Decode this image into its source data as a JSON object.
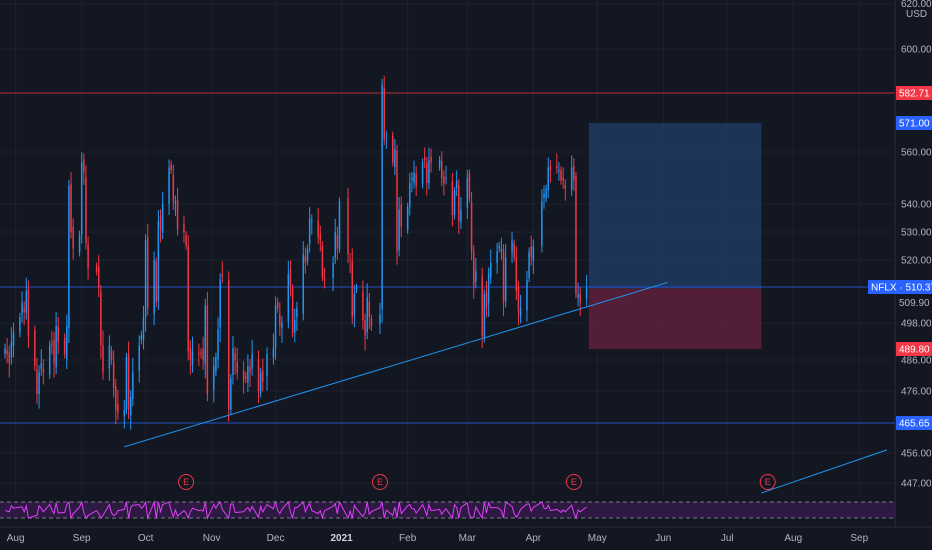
{
  "chart_data": {
    "type": "candlestick",
    "symbol": "NFLX",
    "currency": "USD",
    "y_range": [
      440,
      620
    ],
    "x_range": [
      "2020-07-27",
      "2021-09-14"
    ],
    "price_ticks": [
      620,
      600,
      560,
      540,
      530,
      520,
      498,
      486,
      476,
      456,
      447
    ],
    "price_tick_labels": [
      "620.00",
      "600.00",
      "560.00",
      "540.00",
      "530.00",
      "520.00",
      "498.00",
      "486.00",
      "476.00",
      "456.00",
      "447.00"
    ],
    "time_ticks": [
      {
        "label": "Aug",
        "date": "2020-08-01",
        "bold": false
      },
      {
        "label": "Sep",
        "date": "2020-09-01",
        "bold": false
      },
      {
        "label": "Oct",
        "date": "2020-10-01",
        "bold": false
      },
      {
        "label": "Nov",
        "date": "2020-11-01",
        "bold": false
      },
      {
        "label": "Dec",
        "date": "2020-12-01",
        "bold": false
      },
      {
        "label": "2021",
        "date": "2021-01-01",
        "bold": true
      },
      {
        "label": "Feb",
        "date": "2021-02-01",
        "bold": false
      },
      {
        "label": "Mar",
        "date": "2021-03-01",
        "bold": false
      },
      {
        "label": "Apr",
        "date": "2021-04-01",
        "bold": false
      },
      {
        "label": "May",
        "date": "2021-05-01",
        "bold": false
      },
      {
        "label": "Jun",
        "date": "2021-06-01",
        "bold": false
      },
      {
        "label": "Jul",
        "date": "2021-07-01",
        "bold": false
      },
      {
        "label": "Aug",
        "date": "2021-08-01",
        "bold": false
      },
      {
        "label": "Sep",
        "date": "2021-09-01",
        "bold": false
      }
    ],
    "closes": [
      [
        "2020-07-27",
        490
      ],
      [
        "2020-07-28",
        488
      ],
      [
        "2020-07-29",
        485
      ],
      [
        "2020-07-30",
        492
      ],
      [
        "2020-07-31",
        495
      ],
      [
        "2020-08-03",
        500
      ],
      [
        "2020-08-04",
        505
      ],
      [
        "2020-08-05",
        502
      ],
      [
        "2020-08-06",
        509
      ],
      [
        "2020-08-07",
        494
      ],
      [
        "2020-08-10",
        484
      ],
      [
        "2020-08-11",
        475
      ],
      [
        "2020-08-12",
        482
      ],
      [
        "2020-08-13",
        485
      ],
      [
        "2020-08-14",
        482
      ],
      [
        "2020-08-17",
        491
      ],
      [
        "2020-08-18",
        491
      ],
      [
        "2020-08-19",
        485
      ],
      [
        "2020-08-20",
        497
      ],
      [
        "2020-08-21",
        492
      ],
      [
        "2020-08-24",
        488
      ],
      [
        "2020-08-25",
        497
      ],
      [
        "2020-08-26",
        547
      ],
      [
        "2020-08-27",
        530
      ],
      [
        "2020-08-28",
        524
      ],
      [
        "2020-08-31",
        529
      ],
      [
        "2020-09-01",
        556
      ],
      [
        "2020-09-02",
        552
      ],
      [
        "2020-09-03",
        526
      ],
      [
        "2020-09-04",
        517
      ],
      [
        "2020-09-08",
        516
      ],
      [
        "2020-09-09",
        510
      ],
      [
        "2020-09-10",
        491
      ],
      [
        "2020-09-11",
        482
      ],
      [
        "2020-09-14",
        491
      ],
      [
        "2020-09-15",
        486
      ],
      [
        "2020-09-16",
        477
      ],
      [
        "2020-09-17",
        470
      ],
      [
        "2020-09-18",
        469
      ],
      [
        "2020-09-21",
        470
      ],
      [
        "2020-09-22",
        487
      ],
      [
        "2020-09-23",
        470
      ],
      [
        "2020-09-24",
        474
      ],
      [
        "2020-09-25",
        482
      ],
      [
        "2020-09-28",
        491
      ],
      [
        "2020-09-29",
        494
      ],
      [
        "2020-09-30",
        500
      ],
      [
        "2020-10-01",
        527
      ],
      [
        "2020-10-02",
        503
      ],
      [
        "2020-10-05",
        520
      ],
      [
        "2020-10-06",
        505
      ],
      [
        "2020-10-07",
        534
      ],
      [
        "2020-10-08",
        531
      ],
      [
        "2020-10-09",
        540
      ],
      [
        "2020-10-12",
        554
      ],
      [
        "2020-10-13",
        553
      ],
      [
        "2020-10-14",
        541
      ],
      [
        "2020-10-15",
        541
      ],
      [
        "2020-10-16",
        531
      ],
      [
        "2020-10-19",
        530
      ],
      [
        "2020-10-20",
        525
      ],
      [
        "2020-10-21",
        489
      ],
      [
        "2020-10-22",
        486
      ],
      [
        "2020-10-23",
        489
      ],
      [
        "2020-10-26",
        488
      ],
      [
        "2020-10-27",
        488
      ],
      [
        "2020-10-28",
        486
      ],
      [
        "2020-10-29",
        504
      ],
      [
        "2020-10-30",
        475
      ],
      [
        "2020-11-02",
        484
      ],
      [
        "2020-11-03",
        487
      ],
      [
        "2020-11-04",
        496
      ],
      [
        "2020-11-05",
        513
      ],
      [
        "2020-11-06",
        514
      ],
      [
        "2020-11-09",
        470
      ],
      [
        "2020-11-10",
        480
      ],
      [
        "2020-11-11",
        490
      ],
      [
        "2020-11-12",
        486
      ],
      [
        "2020-11-13",
        482
      ],
      [
        "2020-11-16",
        479
      ],
      [
        "2020-11-17",
        480
      ],
      [
        "2020-11-18",
        484
      ],
      [
        "2020-11-19",
        482
      ],
      [
        "2020-11-20",
        488
      ],
      [
        "2020-11-23",
        476
      ],
      [
        "2020-11-24",
        482
      ],
      [
        "2020-11-25",
        479
      ],
      [
        "2020-11-27",
        488
      ],
      [
        "2020-11-30",
        490
      ],
      [
        "2020-12-01",
        504
      ],
      [
        "2020-12-02",
        503
      ],
      [
        "2020-12-03",
        497
      ],
      [
        "2020-12-04",
        498
      ],
      [
        "2020-12-07",
        515
      ],
      [
        "2020-12-08",
        511
      ],
      [
        "2020-12-09",
        495
      ],
      [
        "2020-12-10",
        499
      ],
      [
        "2020-12-11",
        503
      ],
      [
        "2020-12-14",
        522
      ],
      [
        "2020-12-15",
        519
      ],
      [
        "2020-12-16",
        524
      ],
      [
        "2020-12-17",
        535
      ],
      [
        "2020-12-18",
        534
      ],
      [
        "2020-12-21",
        528
      ],
      [
        "2020-12-22",
        527
      ],
      [
        "2020-12-23",
        514
      ],
      [
        "2020-12-24",
        513
      ],
      [
        "2020-12-28",
        519
      ],
      [
        "2020-12-29",
        530
      ],
      [
        "2020-12-30",
        524
      ],
      [
        "2020-12-31",
        541
      ],
      [
        "2021-01-04",
        522
      ],
      [
        "2021-01-05",
        520
      ],
      [
        "2021-01-06",
        500
      ],
      [
        "2021-01-07",
        508
      ],
      [
        "2021-01-08",
        510
      ],
      [
        "2021-01-11",
        499
      ],
      [
        "2021-01-12",
        494
      ],
      [
        "2021-01-13",
        507
      ],
      [
        "2021-01-14",
        500
      ],
      [
        "2021-01-15",
        497
      ],
      [
        "2021-01-19",
        501
      ],
      [
        "2021-01-20",
        586
      ],
      [
        "2021-01-21",
        565
      ],
      [
        "2021-01-22",
        565
      ],
      [
        "2021-01-25",
        556
      ],
      [
        "2021-01-26",
        561
      ],
      [
        "2021-01-27",
        523
      ],
      [
        "2021-01-28",
        538
      ],
      [
        "2021-01-29",
        532
      ],
      [
        "2021-02-01",
        539
      ],
      [
        "2021-02-02",
        548
      ],
      [
        "2021-02-03",
        550
      ],
      [
        "2021-02-04",
        552
      ],
      [
        "2021-02-05",
        547
      ],
      [
        "2021-02-08",
        556
      ],
      [
        "2021-02-09",
        557
      ],
      [
        "2021-02-10",
        548
      ],
      [
        "2021-02-11",
        557
      ],
      [
        "2021-02-12",
        556
      ],
      [
        "2021-02-16",
        557
      ],
      [
        "2021-02-17",
        550
      ],
      [
        "2021-02-18",
        548
      ],
      [
        "2021-02-19",
        550
      ],
      [
        "2021-02-22",
        536
      ],
      [
        "2021-02-23",
        545
      ],
      [
        "2021-02-24",
        549
      ],
      [
        "2021-02-25",
        534
      ],
      [
        "2021-02-26",
        538
      ],
      [
        "2021-03-01",
        550
      ],
      [
        "2021-03-02",
        542
      ],
      [
        "2021-03-03",
        523
      ],
      [
        "2021-03-04",
        511
      ],
      [
        "2021-03-05",
        516
      ],
      [
        "2021-03-08",
        494
      ],
      [
        "2021-03-09",
        508
      ],
      [
        "2021-03-10",
        503
      ],
      [
        "2021-03-11",
        515
      ],
      [
        "2021-03-12",
        519
      ],
      [
        "2021-03-15",
        523
      ],
      [
        "2021-03-16",
        525
      ],
      [
        "2021-03-17",
        524
      ],
      [
        "2021-03-18",
        505
      ],
      [
        "2021-03-19",
        521
      ],
      [
        "2021-03-22",
        527
      ],
      [
        "2021-03-23",
        521
      ],
      [
        "2021-03-24",
        509
      ],
      [
        "2021-03-25",
        502
      ],
      [
        "2021-03-26",
        503
      ],
      [
        "2021-03-29",
        513
      ],
      [
        "2021-03-30",
        523
      ],
      [
        "2021-03-31",
        521
      ],
      [
        "2021-04-01",
        525
      ],
      [
        "2021-04-05",
        541
      ],
      [
        "2021-04-06",
        544
      ],
      [
        "2021-04-07",
        546
      ],
      [
        "2021-04-08",
        554
      ],
      [
        "2021-04-09",
        553
      ],
      [
        "2021-04-12",
        554
      ],
      [
        "2021-04-13",
        553
      ],
      [
        "2021-04-14",
        549
      ],
      [
        "2021-04-15",
        549
      ],
      [
        "2021-04-16",
        546
      ],
      [
        "2021-04-19",
        554
      ],
      [
        "2021-04-20",
        549
      ],
      [
        "2021-04-21",
        508
      ],
      [
        "2021-04-22",
        508
      ],
      [
        "2021-04-23",
        505
      ],
      [
        "2021-04-26",
        510
      ]
    ],
    "horizontal_levels": [
      {
        "price": 582.71,
        "label": "582.71",
        "color": "#f23645"
      },
      {
        "price": 510.37,
        "label": "510.37",
        "color": "#2962ff"
      },
      {
        "price": 465.65,
        "label": "465.65",
        "color": "#2962ff"
      }
    ],
    "trendline": {
      "start": [
        "2020-09-21",
        458
      ],
      "end": [
        "2021-06-03",
        512
      ],
      "color": "#2196f3"
    },
    "trendline_2": {
      "start": [
        "2021-07-17",
        444
      ],
      "end": [
        "2021-09-14",
        457
      ],
      "color": "#2196f3"
    },
    "long_position": {
      "start": "2021-04-27",
      "end": "2021-07-17",
      "entry": 509.9,
      "target": 571.0,
      "stop": 489.8,
      "entry_label": "509.90",
      "target_label": "571.00",
      "stop_label": "489.80",
      "profit_color": "#1e3a5f",
      "loss_color": "#5b1f3b"
    },
    "last_price_label": "510.37",
    "earnings_markers": [
      {
        "date": "2020-10-20",
        "label": "E"
      },
      {
        "date": "2021-01-19",
        "label": "E"
      },
      {
        "date": "2021-04-20",
        "label": "E"
      },
      {
        "date": "2021-07-20",
        "label": "E"
      }
    ],
    "oscillator": {
      "color": "#e040fb",
      "band_color": "#7b1fa2"
    },
    "colors": {
      "up": "#2196f3",
      "down": "#f23645",
      "background": "#131722",
      "grid": "#1e222d",
      "axis_text": "#b2b5be"
    }
  }
}
